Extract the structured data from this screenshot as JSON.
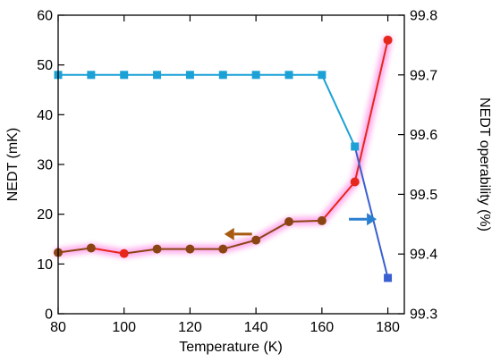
{
  "chart_data": {
    "type": "line",
    "xlabel": "Temperature (K)",
    "ylabel": "NEDT (mK)",
    "y2label": "NEDT operability (%)",
    "xlim": [
      80,
      185
    ],
    "ylim": [
      0,
      60
    ],
    "y2lim": [
      99.3,
      99.8
    ],
    "xticks": [
      "80",
      "100",
      "120",
      "140",
      "160",
      "180"
    ],
    "yticks": [
      "0",
      "10",
      "20",
      "30",
      "40",
      "50",
      "60"
    ],
    "y2ticks": [
      "99.3",
      "99.4",
      "99.5",
      "99.6",
      "99.7",
      "99.8"
    ],
    "grid": false,
    "series": [
      {
        "axis": "left",
        "marker": "circle",
        "x": [
          80,
          90,
          100,
          110,
          120,
          130,
          140,
          150,
          160,
          170,
          180
        ],
        "values": [
          12.3,
          13.2,
          12.1,
          13.0,
          13.0,
          13.0,
          14.8,
          18.5,
          18.7,
          26.5,
          55.0
        ],
        "colors": [
          "#8B4513",
          "#8B4513",
          "#e6271b",
          "#8B4513",
          "#8B4513",
          "#8B4513",
          "#8B4513",
          "#8B4513",
          "#8B4513",
          "#e6271b",
          "#e6271b"
        ]
      },
      {
        "axis": "right",
        "marker": "square",
        "x": [
          80,
          90,
          100,
          110,
          120,
          130,
          140,
          150,
          160,
          170,
          180
        ],
        "values": [
          99.7,
          99.7,
          99.7,
          99.7,
          99.7,
          99.7,
          99.7,
          99.7,
          99.7,
          99.58,
          99.36
        ],
        "colors": [
          "#1ba1d6",
          "#1ba1d6",
          "#1ba1d6",
          "#1ba1d6",
          "#1ba1d6",
          "#1ba1d6",
          "#1ba1d6",
          "#1ba1d6",
          "#1ba1d6",
          "#1ba1d6",
          "#3a5fd0"
        ]
      }
    ],
    "annotations": [
      {
        "type": "arrow",
        "direction": "left",
        "color": "#a85a10",
        "x": 135,
        "y": 16
      },
      {
        "type": "arrow",
        "direction": "right",
        "color": "#2a7fd0",
        "x": 172,
        "y": 19
      }
    ],
    "colors": {
      "brown": "#8B4513",
      "red": "#e6271b",
      "cyan": "#1ba1d6",
      "blue": "#3a5fd0",
      "glow": "#ff4fd8"
    }
  }
}
